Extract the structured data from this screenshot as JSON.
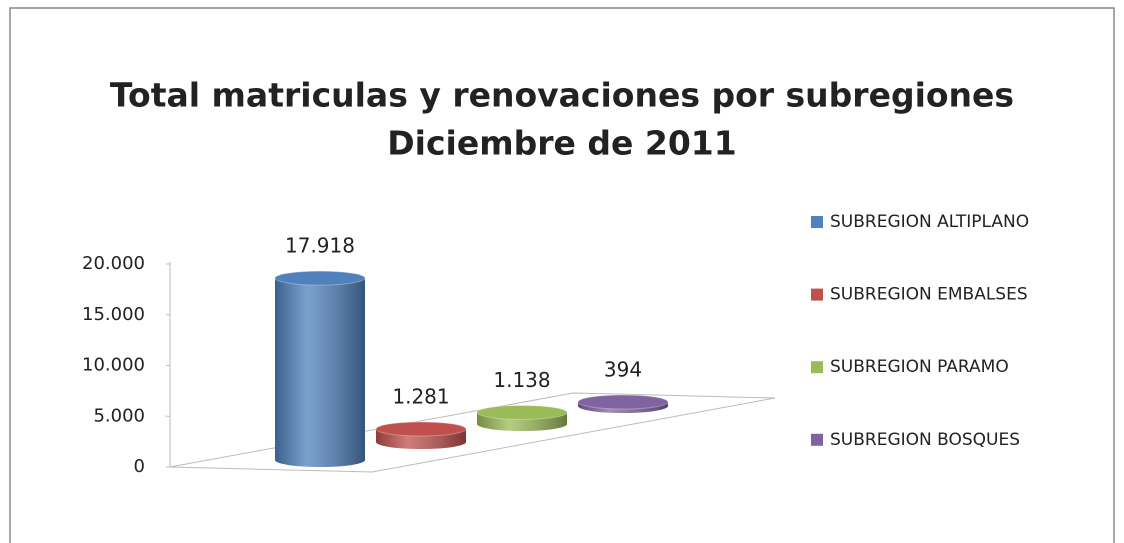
{
  "chart_data": {
    "type": "bar3d",
    "title": "Total matriculas y renovaciones por subregiones",
    "subtitle": "Diciembre de 2011",
    "series": [
      {
        "name": "SUBREGION ALTIPLANO",
        "color": "#4f81bd",
        "values": [
          17918
        ],
        "value_labels": [
          "17.918"
        ]
      },
      {
        "name": "SUBREGION EMBALSES",
        "color": "#c0504d",
        "values": [
          1281
        ],
        "value_labels": [
          "1.281"
        ]
      },
      {
        "name": "SUBREGION PARAMO",
        "color": "#9bbb59",
        "values": [
          1138
        ],
        "value_labels": [
          "1.138"
        ]
      },
      {
        "name": "SUBREGION BOSQUES",
        "color": "#8064a2",
        "values": [
          394
        ],
        "value_labels": [
          "394"
        ]
      }
    ],
    "ylim": [
      0,
      20000
    ],
    "yticks": [
      0,
      {
        "value": 5000,
        "label": "5.000"
      },
      {
        "value": 10000,
        "label": "10.000"
      },
      {
        "value": 15000,
        "label": "15.000"
      },
      {
        "value": 20000,
        "label": "20.000"
      }
    ],
    "legend": "right"
  }
}
